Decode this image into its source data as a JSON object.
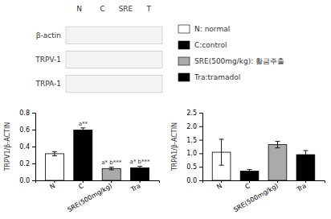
{
  "chart_data": [
    {
      "type": "bar",
      "categories": [
        "N",
        "C",
        "SRE(500mg/kg)",
        "Tra"
      ],
      "values": [
        0.315,
        0.595,
        0.14,
        0.148
      ],
      "errors": [
        0.025,
        0.025,
        0.015,
        0.018
      ],
      "colors": [
        "white",
        "black",
        "#aaaaaa",
        "black"
      ],
      "edgecolor": "black",
      "error_color": "black",
      "ylabel": "TRPV1/β-ACTIN",
      "ylim": [
        0,
        0.8
      ],
      "yticks": [
        {
          "value": 0.0,
          "label": "0.0"
        },
        0.2,
        0.4,
        0.6,
        0.8
      ],
      "annotations": [
        {
          "x": "C",
          "y": 0.635,
          "text": "a**"
        },
        {
          "x": "SRE(500mg/kg)",
          "y": 0.183,
          "text": "a* b***"
        },
        {
          "x": "Tra",
          "y": 0.193,
          "text": "a* b***"
        }
      ],
      "legend_entries": [
        {
          "name": "N: normal",
          "color": "white"
        },
        {
          "name": "C:control",
          "color": "black"
        },
        {
          "name": "SRE(500mg/kg): 활금주출",
          "color": "#aaaaaa"
        },
        {
          "name": "Tra:tramadol",
          "color": "black"
        }
      ]
    },
    {
      "type": "bar",
      "categories": [
        "N",
        "C",
        "SRE(500mg/kg)",
        "Tra"
      ],
      "values": [
        1.04,
        0.34,
        1.32,
        0.95
      ],
      "errors": [
        0.48,
        0.06,
        0.12,
        0.15
      ],
      "colors": [
        "white",
        "black",
        "#aaaaaa",
        "black"
      ],
      "edgecolor": "black",
      "error_color": "black",
      "ylabel": "TRPA1/β-ACTIN",
      "ylim": [
        0,
        2.5
      ],
      "yticks": [
        {
          "value": 0.0,
          "label": "0.0"
        },
        0.5,
        {
          "value": 1.0,
          "label": "1.0"
        },
        1.5,
        {
          "value": 2.0,
          "label": "2.0"
        },
        2.5
      ]
    }
  ],
  "blot": {
    "lanes": [
      "N",
      "C",
      "SRE",
      "T"
    ],
    "rows": [
      "β-actin",
      "TRPV-1",
      "TRPA-1"
    ]
  }
}
